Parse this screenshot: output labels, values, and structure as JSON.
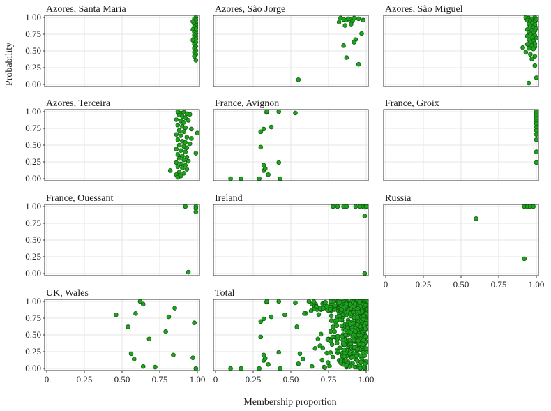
{
  "chart_data": {
    "type": "scatter",
    "xlabel": "Membership proportion",
    "ylabel": "Probability",
    "xlim": [
      0,
      1
    ],
    "ylim": [
      0,
      1
    ],
    "x_ticks": [
      "0",
      "0.25",
      "0.50",
      "0.75",
      "1.00"
    ],
    "y_ticks": [
      "0.00",
      "0.25",
      "0.50",
      "0.75",
      "1.00"
    ],
    "grid": true,
    "point_color": "#22a022",
    "point_edge": "#0b5e0b",
    "panels": [
      {
        "title": "Azores, Santa Maria",
        "points": [
          [
            0.99,
            1.0
          ],
          [
            0.98,
            0.98
          ],
          [
            0.99,
            0.96
          ],
          [
            0.97,
            0.94
          ],
          [
            0.99,
            0.92
          ],
          [
            0.98,
            0.9
          ],
          [
            0.99,
            0.88
          ],
          [
            0.98,
            0.86
          ],
          [
            0.99,
            0.84
          ],
          [
            0.97,
            0.82
          ],
          [
            0.99,
            0.8
          ],
          [
            0.98,
            0.78
          ],
          [
            0.99,
            0.76
          ],
          [
            0.98,
            0.74
          ],
          [
            0.99,
            0.72
          ],
          [
            0.98,
            0.7
          ],
          [
            0.99,
            0.68
          ],
          [
            0.97,
            0.66
          ],
          [
            0.99,
            0.63
          ],
          [
            0.98,
            0.6
          ],
          [
            0.99,
            0.57
          ],
          [
            0.98,
            0.54
          ],
          [
            0.99,
            0.51
          ],
          [
            0.98,
            0.48
          ],
          [
            0.99,
            0.45
          ],
          [
            0.98,
            0.42
          ],
          [
            0.99,
            0.36
          ]
        ]
      },
      {
        "title": "Azores, São Jorge",
        "points": [
          [
            0.55,
            0.07
          ],
          [
            0.83,
            0.99
          ],
          [
            0.85,
            0.97
          ],
          [
            0.87,
            0.96
          ],
          [
            0.88,
            0.98
          ],
          [
            0.9,
            0.97
          ],
          [
            0.91,
            0.95
          ],
          [
            0.92,
            0.99
          ],
          [
            0.95,
            0.98
          ],
          [
            0.98,
            0.96
          ],
          [
            0.82,
            0.93
          ],
          [
            0.86,
            0.88
          ],
          [
            0.9,
            0.9
          ],
          [
            0.97,
            0.76
          ],
          [
            0.93,
            0.67
          ],
          [
            0.92,
            0.63
          ],
          [
            0.85,
            0.58
          ],
          [
            0.87,
            0.4
          ],
          [
            0.95,
            0.3
          ]
        ]
      },
      {
        "title": "Azores, São Miguel",
        "points": [
          [
            0.93,
            1.0
          ],
          [
            0.95,
            0.99
          ],
          [
            0.97,
            0.98
          ],
          [
            0.99,
            1.0
          ],
          [
            1.0,
            0.97
          ],
          [
            0.94,
            0.96
          ],
          [
            0.96,
            0.95
          ],
          [
            0.98,
            0.94
          ],
          [
            0.99,
            0.93
          ],
          [
            0.97,
            0.92
          ],
          [
            0.95,
            0.9
          ],
          [
            0.99,
            0.89
          ],
          [
            0.96,
            0.87
          ],
          [
            0.98,
            0.85
          ],
          [
            1.0,
            0.84
          ],
          [
            0.94,
            0.82
          ],
          [
            0.97,
            0.81
          ],
          [
            0.99,
            0.8
          ],
          [
            0.95,
            0.78
          ],
          [
            0.98,
            0.77
          ],
          [
            0.96,
            0.75
          ],
          [
            0.99,
            0.73
          ],
          [
            0.94,
            0.72
          ],
          [
            0.97,
            0.7
          ],
          [
            1.0,
            0.69
          ],
          [
            0.95,
            0.67
          ],
          [
            0.98,
            0.65
          ],
          [
            0.96,
            0.63
          ],
          [
            0.99,
            0.61
          ],
          [
            0.94,
            0.6
          ],
          [
            0.97,
            0.58
          ],
          [
            0.99,
            0.56
          ],
          [
            0.95,
            0.54
          ],
          [
            0.98,
            0.53
          ],
          [
            0.91,
            0.55
          ],
          [
            0.93,
            0.48
          ],
          [
            0.96,
            0.45
          ],
          [
            0.99,
            0.42
          ],
          [
            0.97,
            0.38
          ],
          [
            0.99,
            0.28
          ],
          [
            1.0,
            0.1
          ],
          [
            0.95,
            0.02
          ]
        ]
      },
      {
        "title": "Azores, Terceira",
        "points": [
          [
            0.87,
            1.0
          ],
          [
            0.89,
            0.98
          ],
          [
            0.91,
            0.99
          ],
          [
            0.93,
            0.97
          ],
          [
            0.88,
            0.95
          ],
          [
            0.9,
            0.93
          ],
          [
            0.92,
            0.91
          ],
          [
            0.95,
            0.96
          ],
          [
            0.86,
            0.88
          ],
          [
            0.89,
            0.86
          ],
          [
            0.91,
            0.84
          ],
          [
            0.94,
            0.87
          ],
          [
            0.87,
            0.8
          ],
          [
            0.9,
            0.78
          ],
          [
            0.92,
            0.76
          ],
          [
            0.96,
            0.74
          ],
          [
            0.88,
            0.72
          ],
          [
            0.91,
            0.7
          ],
          [
            1.0,
            0.68
          ],
          [
            0.86,
            0.66
          ],
          [
            0.89,
            0.64
          ],
          [
            0.93,
            0.62
          ],
          [
            0.96,
            0.6
          ],
          [
            0.87,
            0.58
          ],
          [
            0.9,
            0.56
          ],
          [
            0.92,
            0.54
          ],
          [
            0.95,
            0.52
          ],
          [
            0.88,
            0.5
          ],
          [
            0.91,
            0.48
          ],
          [
            0.93,
            0.46
          ],
          [
            0.86,
            0.44
          ],
          [
            0.89,
            0.42
          ],
          [
            0.92,
            0.4
          ],
          [
            0.99,
            0.38
          ],
          [
            0.87,
            0.36
          ],
          [
            0.9,
            0.34
          ],
          [
            0.93,
            0.32
          ],
          [
            0.88,
            0.3
          ],
          [
            0.91,
            0.28
          ],
          [
            0.94,
            0.26
          ],
          [
            0.86,
            0.24
          ],
          [
            0.89,
            0.22
          ],
          [
            0.92,
            0.2
          ],
          [
            0.87,
            0.18
          ],
          [
            0.9,
            0.16
          ],
          [
            0.93,
            0.14
          ],
          [
            0.82,
            0.12
          ],
          [
            0.88,
            0.1
          ],
          [
            0.91,
            0.08
          ],
          [
            0.86,
            0.06
          ],
          [
            0.89,
            0.04
          ],
          [
            0.87,
            0.02
          ]
        ]
      },
      {
        "title": "France, Avignon",
        "points": [
          [
            0.1,
            0.0
          ],
          [
            0.17,
            0.0
          ],
          [
            0.29,
            0.0
          ],
          [
            0.43,
            0.0
          ],
          [
            0.35,
            0.06
          ],
          [
            0.32,
            0.12
          ],
          [
            0.33,
            0.15
          ],
          [
            0.32,
            0.2
          ],
          [
            0.42,
            0.24
          ],
          [
            0.3,
            0.47
          ],
          [
            0.3,
            0.7
          ],
          [
            0.32,
            0.74
          ],
          [
            0.37,
            0.77
          ],
          [
            0.34,
            0.99
          ],
          [
            0.34,
            1.0
          ],
          [
            0.42,
            1.0
          ],
          [
            0.53,
            0.98
          ]
        ]
      },
      {
        "title": "France, Groix",
        "points": [
          [
            1.0,
            1.0
          ],
          [
            1.0,
            0.97
          ],
          [
            1.0,
            0.94
          ],
          [
            1.0,
            0.9
          ],
          [
            1.0,
            0.86
          ],
          [
            1.0,
            0.82
          ],
          [
            1.0,
            0.77
          ],
          [
            1.0,
            0.72
          ],
          [
            1.0,
            0.66
          ],
          [
            1.0,
            0.58
          ],
          [
            1.0,
            0.4
          ],
          [
            1.0,
            0.24
          ]
        ]
      },
      {
        "title": "France, Ouessant",
        "points": [
          [
            0.92,
            1.0
          ],
          [
            0.99,
            1.0
          ],
          [
            0.99,
            0.97
          ],
          [
            0.99,
            0.92
          ],
          [
            0.94,
            0.02
          ]
        ]
      },
      {
        "title": "Ireland",
        "points": [
          [
            0.78,
            1.0
          ],
          [
            0.81,
            1.0
          ],
          [
            0.85,
            1.0
          ],
          [
            0.87,
            1.0
          ],
          [
            0.93,
            1.0
          ],
          [
            0.96,
            1.0
          ],
          [
            0.98,
            1.0
          ],
          [
            0.99,
            0.99
          ],
          [
            1.0,
            1.0
          ],
          [
            0.99,
            0.86
          ],
          [
            0.99,
            0.0
          ]
        ]
      },
      {
        "title": "Russia",
        "points": [
          [
            0.6,
            0.82
          ],
          [
            0.92,
            1.0
          ],
          [
            0.94,
            1.0
          ],
          [
            0.96,
            1.0
          ],
          [
            0.98,
            1.0
          ],
          [
            0.92,
            0.22
          ]
        ]
      },
      {
        "title": "UK, Wales",
        "points": [
          [
            0.62,
            1.0
          ],
          [
            0.64,
            0.96
          ],
          [
            0.59,
            0.82
          ],
          [
            0.85,
            0.9
          ],
          [
            0.46,
            0.8
          ],
          [
            0.81,
            0.77
          ],
          [
            0.98,
            0.68
          ],
          [
            0.54,
            0.62
          ],
          [
            0.79,
            0.55
          ],
          [
            0.68,
            0.44
          ],
          [
            0.56,
            0.22
          ],
          [
            0.58,
            0.14
          ],
          [
            0.84,
            0.2
          ],
          [
            0.97,
            0.16
          ],
          [
            0.64,
            0.03
          ],
          [
            0.72,
            0.02
          ],
          [
            0.99,
            0.0
          ]
        ]
      },
      {
        "title": "Total",
        "points": []
      }
    ]
  }
}
